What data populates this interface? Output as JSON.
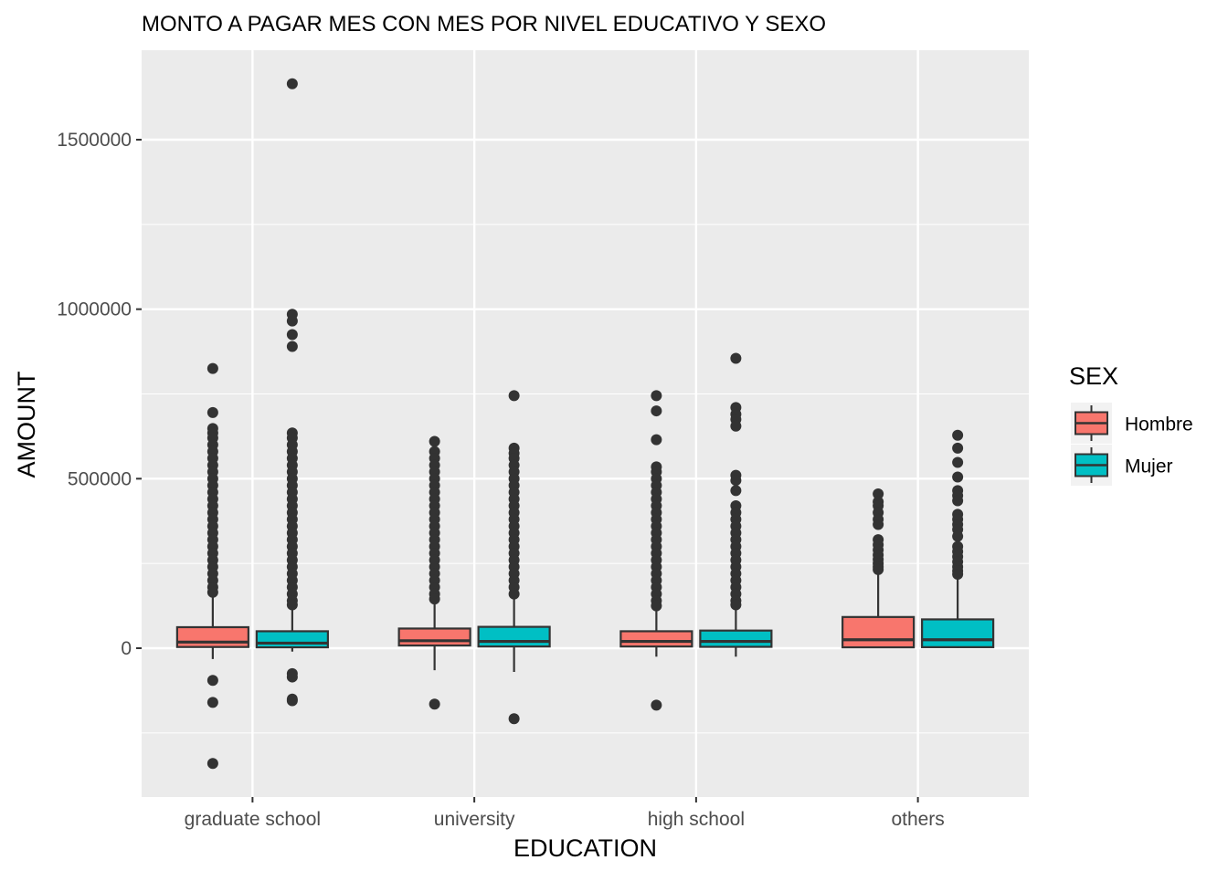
{
  "chart_data": {
    "type": "boxplot",
    "title": "MONTO A PAGAR MES CON MES POR NIVEL EDUCATIVO Y SEXO",
    "xlabel": "EDUCATION",
    "ylabel": "AMOUNT",
    "categories": [
      "graduate school",
      "university",
      "high school",
      "others"
    ],
    "ylim": [
      -440000,
      1760000
    ],
    "yticks": [
      0,
      500000,
      1000000,
      1500000
    ],
    "ytick_labels": [
      "0",
      "500000",
      "1000000",
      "1500000"
    ],
    "grid": true,
    "legend": {
      "title": "SEX",
      "position": "right",
      "entries": [
        "Hombre",
        "Mujer"
      ]
    },
    "series": [
      {
        "name": "Hombre",
        "color": "#F8766D",
        "boxes": [
          {
            "category": "graduate school",
            "min": -32000,
            "q1": 3500,
            "median": 18000,
            "q3": 62000,
            "max": 155000,
            "outliers": [
              825000,
              695000,
              648000,
              635000,
              620000,
              600000,
              580000,
              560000,
              540000,
              520000,
              500000,
              480000,
              460000,
              440000,
              420000,
              400000,
              380000,
              360000,
              340000,
              320000,
              300000,
              280000,
              260000,
              240000,
              220000,
              200000,
              180000,
              165000,
              -95000,
              -160000,
              -340000
            ]
          },
          {
            "category": "university",
            "min": -65000,
            "q1": 8000,
            "median": 22000,
            "q3": 58000,
            "max": 135000,
            "outliers": [
              610000,
              580000,
              560000,
              540000,
              520000,
              500000,
              480000,
              460000,
              440000,
              420000,
              400000,
              380000,
              360000,
              340000,
              320000,
              300000,
              280000,
              260000,
              240000,
              220000,
              200000,
              180000,
              160000,
              145000,
              -165000
            ]
          },
          {
            "category": "high school",
            "min": -25000,
            "q1": 5000,
            "median": 20000,
            "q3": 50000,
            "max": 115000,
            "outliers": [
              745000,
              700000,
              615000,
              535000,
              520000,
              500000,
              480000,
              460000,
              440000,
              420000,
              400000,
              380000,
              360000,
              340000,
              320000,
              300000,
              280000,
              260000,
              240000,
              220000,
              200000,
              180000,
              160000,
              140000,
              125000,
              -168000
            ]
          },
          {
            "category": "others",
            "min": 0,
            "q1": 2500,
            "median": 25000,
            "q3": 92000,
            "max": 225000,
            "outliers": [
              455000,
              432000,
              420000,
              400000,
              380000,
              365000,
              320000,
              305000,
              290000,
              275000,
              262000,
              250000,
              240000,
              232000
            ]
          }
        ]
      },
      {
        "name": "Mujer",
        "color": "#00BFC4",
        "boxes": [
          {
            "category": "graduate school",
            "min": -10000,
            "q1": 2500,
            "median": 15000,
            "q3": 50000,
            "max": 120000,
            "outliers": [
              1665000,
              985000,
              965000,
              925000,
              890000,
              635000,
              620000,
              600000,
              580000,
              560000,
              540000,
              520000,
              500000,
              480000,
              460000,
              440000,
              420000,
              400000,
              380000,
              360000,
              340000,
              320000,
              300000,
              280000,
              260000,
              240000,
              220000,
              200000,
              180000,
              160000,
              140000,
              128000,
              -75000,
              -85000,
              -150000,
              -155000
            ]
          },
          {
            "category": "university",
            "min": -70000,
            "q1": 5000,
            "median": 20000,
            "q3": 63000,
            "max": 150000,
            "outliers": [
              745000,
              590000,
              575000,
              560000,
              540000,
              520000,
              500000,
              480000,
              460000,
              440000,
              420000,
              400000,
              380000,
              360000,
              340000,
              320000,
              300000,
              280000,
              260000,
              240000,
              220000,
              200000,
              180000,
              160000,
              -208000
            ]
          },
          {
            "category": "high school",
            "min": -25000,
            "q1": 4000,
            "median": 20000,
            "q3": 52000,
            "max": 120000,
            "outliers": [
              855000,
              710000,
              690000,
              675000,
              655000,
              510000,
              495000,
              465000,
              420000,
              400000,
              380000,
              360000,
              340000,
              320000,
              300000,
              280000,
              260000,
              240000,
              220000,
              200000,
              180000,
              160000,
              140000,
              128000
            ]
          },
          {
            "category": "others",
            "min": 0,
            "q1": 3000,
            "median": 25000,
            "q3": 85000,
            "max": 210000,
            "outliers": [
              628000,
              590000,
              548000,
              505000,
              465000,
              450000,
              435000,
              395000,
              380000,
              365000,
              350000,
              330000,
              300000,
              285000,
              270000,
              255000,
              240000,
              228000,
              218000
            ]
          }
        ]
      }
    ]
  }
}
